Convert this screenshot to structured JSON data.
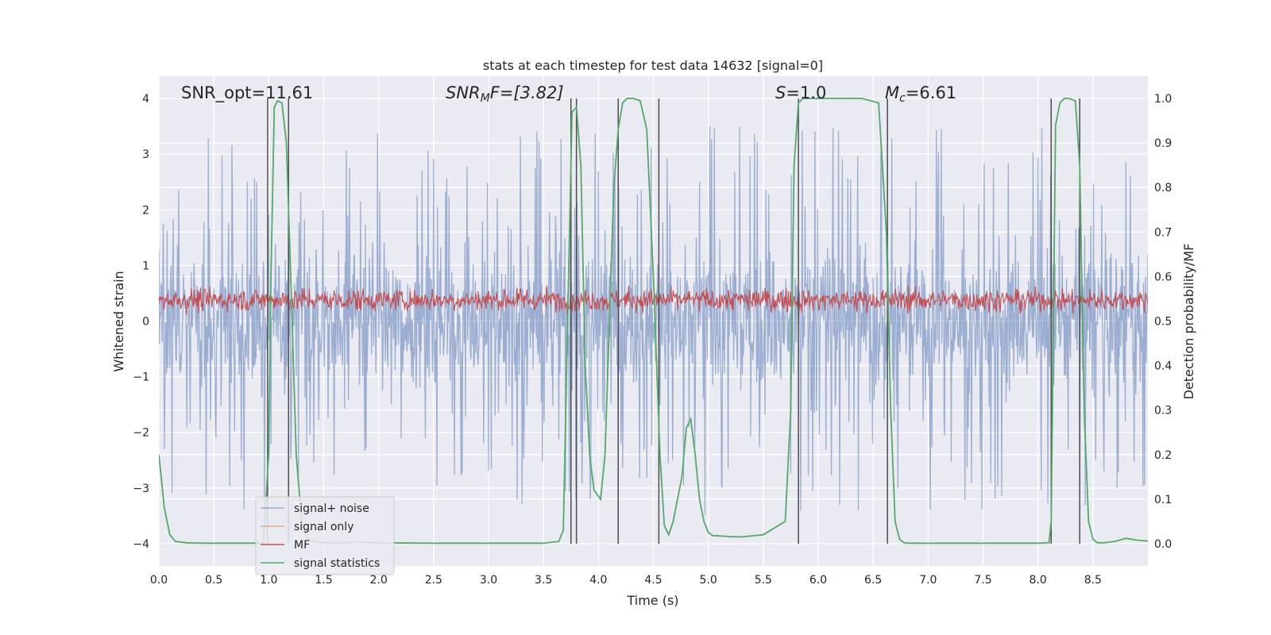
{
  "chart_data": {
    "type": "line",
    "title": "stats at each timestep for test data 14632 [signal=0]",
    "xlabel": "Time (s)",
    "ylabel_left": "Whitened strain",
    "ylabel_right": "Detection probability/MF",
    "xlim": [
      0.0,
      9.0
    ],
    "ylim_left": [
      -4.4,
      4.4
    ],
    "ylim_right": [
      -0.05,
      1.05
    ],
    "xticks": [
      "0.0",
      "0.5",
      "1.0",
      "1.5",
      "2.0",
      "2.5",
      "3.0",
      "3.5",
      "4.0",
      "4.5",
      "5.0",
      "5.5",
      "6.0",
      "6.5",
      "7.0",
      "7.5",
      "8.0",
      "8.5"
    ],
    "yticks_left": [
      "4",
      "3",
      "2",
      "1",
      "0",
      "−1",
      "−2",
      "−3",
      "−4"
    ],
    "yticks_right": [
      "1.0",
      "0.9",
      "0.8",
      "0.7",
      "0.6",
      "0.5",
      "0.4",
      "0.3",
      "0.2",
      "0.1",
      "0.0"
    ],
    "grid": true,
    "legend_position": "lower-left",
    "annotations": {
      "snr_opt": "SNR_opt=11.61",
      "snr_mf": "SNR",
      "snr_mf_sub": "M",
      "snr_mf_tail": "F=[3.82]",
      "s_label": "S",
      "s_value": "=1.0",
      "mc_label": "M",
      "mc_sub": "c",
      "mc_value": "=6.61"
    },
    "series": [
      {
        "name": "signal+ noise",
        "color": "#4c72b0",
        "axis": "left",
        "style": "noise band approx ±1.6 with spikes to ±3.6"
      },
      {
        "name": "signal only",
        "color": "#dd8452",
        "axis": "left",
        "values": []
      },
      {
        "name": "MF",
        "color": "#c44e52",
        "axis": "left",
        "style": "noise band approx 0.1 to 0.75"
      },
      {
        "name": "signal statistics",
        "color": "#55a868",
        "axis": "right",
        "x": [
          0.0,
          0.05,
          0.1,
          0.15,
          0.25,
          0.4,
          0.6,
          0.8,
          0.95,
          1.0,
          1.02,
          1.05,
          1.08,
          1.12,
          1.16,
          1.2,
          1.25,
          1.3,
          1.35,
          1.45,
          1.6,
          1.7,
          1.8,
          2.0,
          2.5,
          3.0,
          3.5,
          3.64,
          3.68,
          3.72,
          3.76,
          3.8,
          3.84,
          3.88,
          3.92,
          3.96,
          4.02,
          4.06,
          4.1,
          4.14,
          4.18,
          4.22,
          4.26,
          4.32,
          4.38,
          4.44,
          4.5,
          4.56,
          4.6,
          4.64,
          4.68,
          4.72,
          4.76,
          4.8,
          4.84,
          4.88,
          4.92,
          4.96,
          5.0,
          5.04,
          5.08,
          5.12,
          5.2,
          5.3,
          5.5,
          5.7,
          5.75,
          5.78,
          5.82,
          5.86,
          5.9,
          6.0,
          6.2,
          6.4,
          6.55,
          6.62,
          6.66,
          6.7,
          6.74,
          6.78,
          6.82,
          7.0,
          7.5,
          8.0,
          8.1,
          8.12,
          8.16,
          8.2,
          8.24,
          8.28,
          8.34,
          8.38,
          8.42,
          8.46,
          8.5,
          8.54,
          8.6,
          8.7,
          8.8,
          8.9,
          9.0
        ],
        "values": [
          0.2,
          0.08,
          0.02,
          0.005,
          0.002,
          0.001,
          0.001,
          0.001,
          0.001,
          0.2,
          0.6,
          0.98,
          0.995,
          0.99,
          0.9,
          0.6,
          0.2,
          0.05,
          0.01,
          0.003,
          0.002,
          0.002,
          0.004,
          0.002,
          0.001,
          0.001,
          0.001,
          0.005,
          0.03,
          0.5,
          0.97,
          0.98,
          0.85,
          0.4,
          0.2,
          0.12,
          0.1,
          0.2,
          0.5,
          0.8,
          0.93,
          0.99,
          1.0,
          1.0,
          0.995,
          0.93,
          0.6,
          0.2,
          0.04,
          0.02,
          0.05,
          0.1,
          0.15,
          0.26,
          0.28,
          0.2,
          0.1,
          0.05,
          0.025,
          0.018,
          0.018,
          0.017,
          0.016,
          0.015,
          0.02,
          0.05,
          0.3,
          0.85,
          0.99,
          1.0,
          1.0,
          1.0,
          1.0,
          1.0,
          0.99,
          0.7,
          0.3,
          0.05,
          0.01,
          0.002,
          0.001,
          0.001,
          0.001,
          0.001,
          0.002,
          0.05,
          0.94,
          0.99,
          1.0,
          1.0,
          0.995,
          0.85,
          0.3,
          0.05,
          0.01,
          0.002,
          0.002,
          0.005,
          0.012,
          0.008,
          0.006
        ]
      }
    ],
    "vlines": [
      0.99,
      1.18,
      3.75,
      3.8,
      4.18,
      4.55,
      5.82,
      6.63,
      8.12,
      8.38
    ],
    "vline_color": "#4d4d4d"
  }
}
